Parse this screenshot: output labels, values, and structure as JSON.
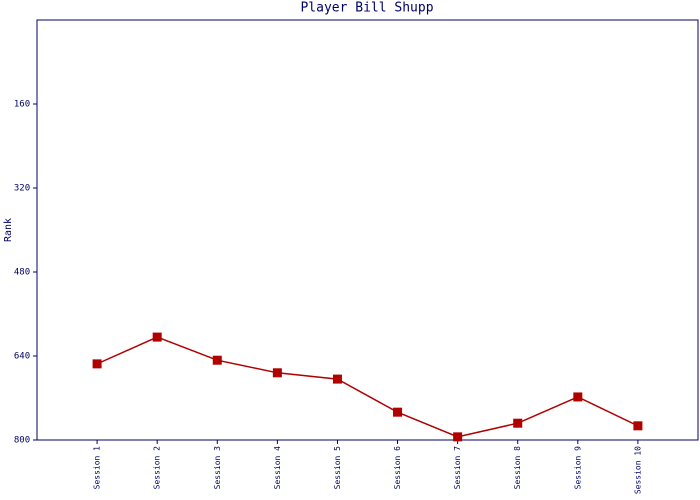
{
  "chart_data": {
    "type": "line",
    "title": "Player Bill Shupp",
    "y_label": "Rank",
    "categories": [
      "Session 1",
      "Session 2",
      "Session 3",
      "Session 4",
      "Session 5",
      "Session 6",
      "Session 7",
      "Session 8",
      "Session 9",
      "Session 10"
    ],
    "series": [
      {
        "name": "Rank",
        "color": "#b00000",
        "values": [
          655,
          604,
          648,
          672,
          684,
          747,
          794,
          768,
          718,
          773
        ]
      }
    ],
    "ylim": [
      800,
      0
    ],
    "yticks": [
      160,
      320,
      480,
      640,
      800
    ],
    "axis_color": "#000066"
  }
}
